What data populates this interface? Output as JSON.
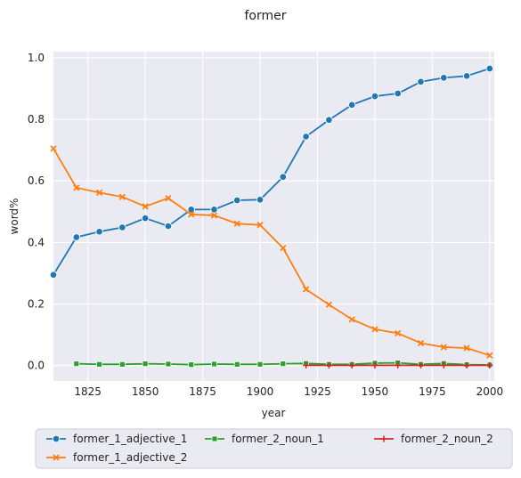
{
  "chart_data": {
    "type": "line",
    "title": "former",
    "xlabel": "year",
    "ylabel": "word%",
    "xlim": [
      1810,
      2002
    ],
    "ylim": [
      -0.05,
      1.02
    ],
    "x_ticks": [
      1825,
      1850,
      1875,
      1900,
      1925,
      1950,
      1975,
      2000
    ],
    "x_tick_labels": [
      "1825",
      "1850",
      "1875",
      "1900",
      "1925",
      "1950",
      "1975",
      "2000"
    ],
    "y_ticks": [
      0.0,
      0.2,
      0.4,
      0.6,
      0.8,
      1.0
    ],
    "y_tick_labels": [
      "0.0",
      "0.2",
      "0.4",
      "0.6",
      "0.8",
      "1.0"
    ],
    "grid": true,
    "legend_position": "bottom",
    "series": [
      {
        "name": "former_1_adjective_1",
        "color": "#1f77b4",
        "marker": "circle",
        "x": [
          1810,
          1820,
          1830,
          1840,
          1850,
          1860,
          1870,
          1880,
          1890,
          1900,
          1910,
          1920,
          1930,
          1940,
          1950,
          1960,
          1970,
          1980,
          1990,
          2000
        ],
        "y": [
          0.295,
          0.417,
          0.435,
          0.449,
          0.479,
          0.453,
          0.507,
          0.507,
          0.537,
          0.539,
          0.613,
          0.744,
          0.798,
          0.847,
          0.875,
          0.884,
          0.922,
          0.935,
          0.941,
          0.965
        ]
      },
      {
        "name": "former_1_adjective_2",
        "color": "#ff7f0e",
        "marker": "x",
        "x": [
          1810,
          1820,
          1830,
          1840,
          1850,
          1860,
          1870,
          1880,
          1890,
          1900,
          1910,
          1920,
          1930,
          1940,
          1950,
          1960,
          1970,
          1980,
          1990,
          2000
        ],
        "y": [
          0.705,
          0.578,
          0.562,
          0.548,
          0.517,
          0.544,
          0.491,
          0.488,
          0.461,
          0.457,
          0.382,
          0.248,
          0.198,
          0.15,
          0.118,
          0.105,
          0.073,
          0.06,
          0.057,
          0.033
        ]
      },
      {
        "name": "former_2_noun_1",
        "color": "#2ca02c",
        "marker": "square",
        "x": [
          1820,
          1830,
          1840,
          1850,
          1860,
          1870,
          1880,
          1890,
          1900,
          1910,
          1920,
          1930,
          1940,
          1950,
          1960,
          1970,
          1980,
          1990,
          2000
        ],
        "y": [
          0.006,
          0.004,
          0.004,
          0.006,
          0.005,
          0.003,
          0.005,
          0.004,
          0.004,
          0.006,
          0.007,
          0.004,
          0.004,
          0.008,
          0.009,
          0.004,
          0.007,
          0.003,
          0.002
        ]
      },
      {
        "name": "former_2_noun_2",
        "color": "#d62728",
        "marker": "plus",
        "x": [
          1920,
          1930,
          1940,
          1950,
          1960,
          1970,
          1980,
          1990,
          2000
        ],
        "y": [
          0.001,
          0.001,
          0.001,
          0.001,
          0.001,
          0.001,
          0.001,
          0.001,
          0.001
        ]
      }
    ]
  }
}
